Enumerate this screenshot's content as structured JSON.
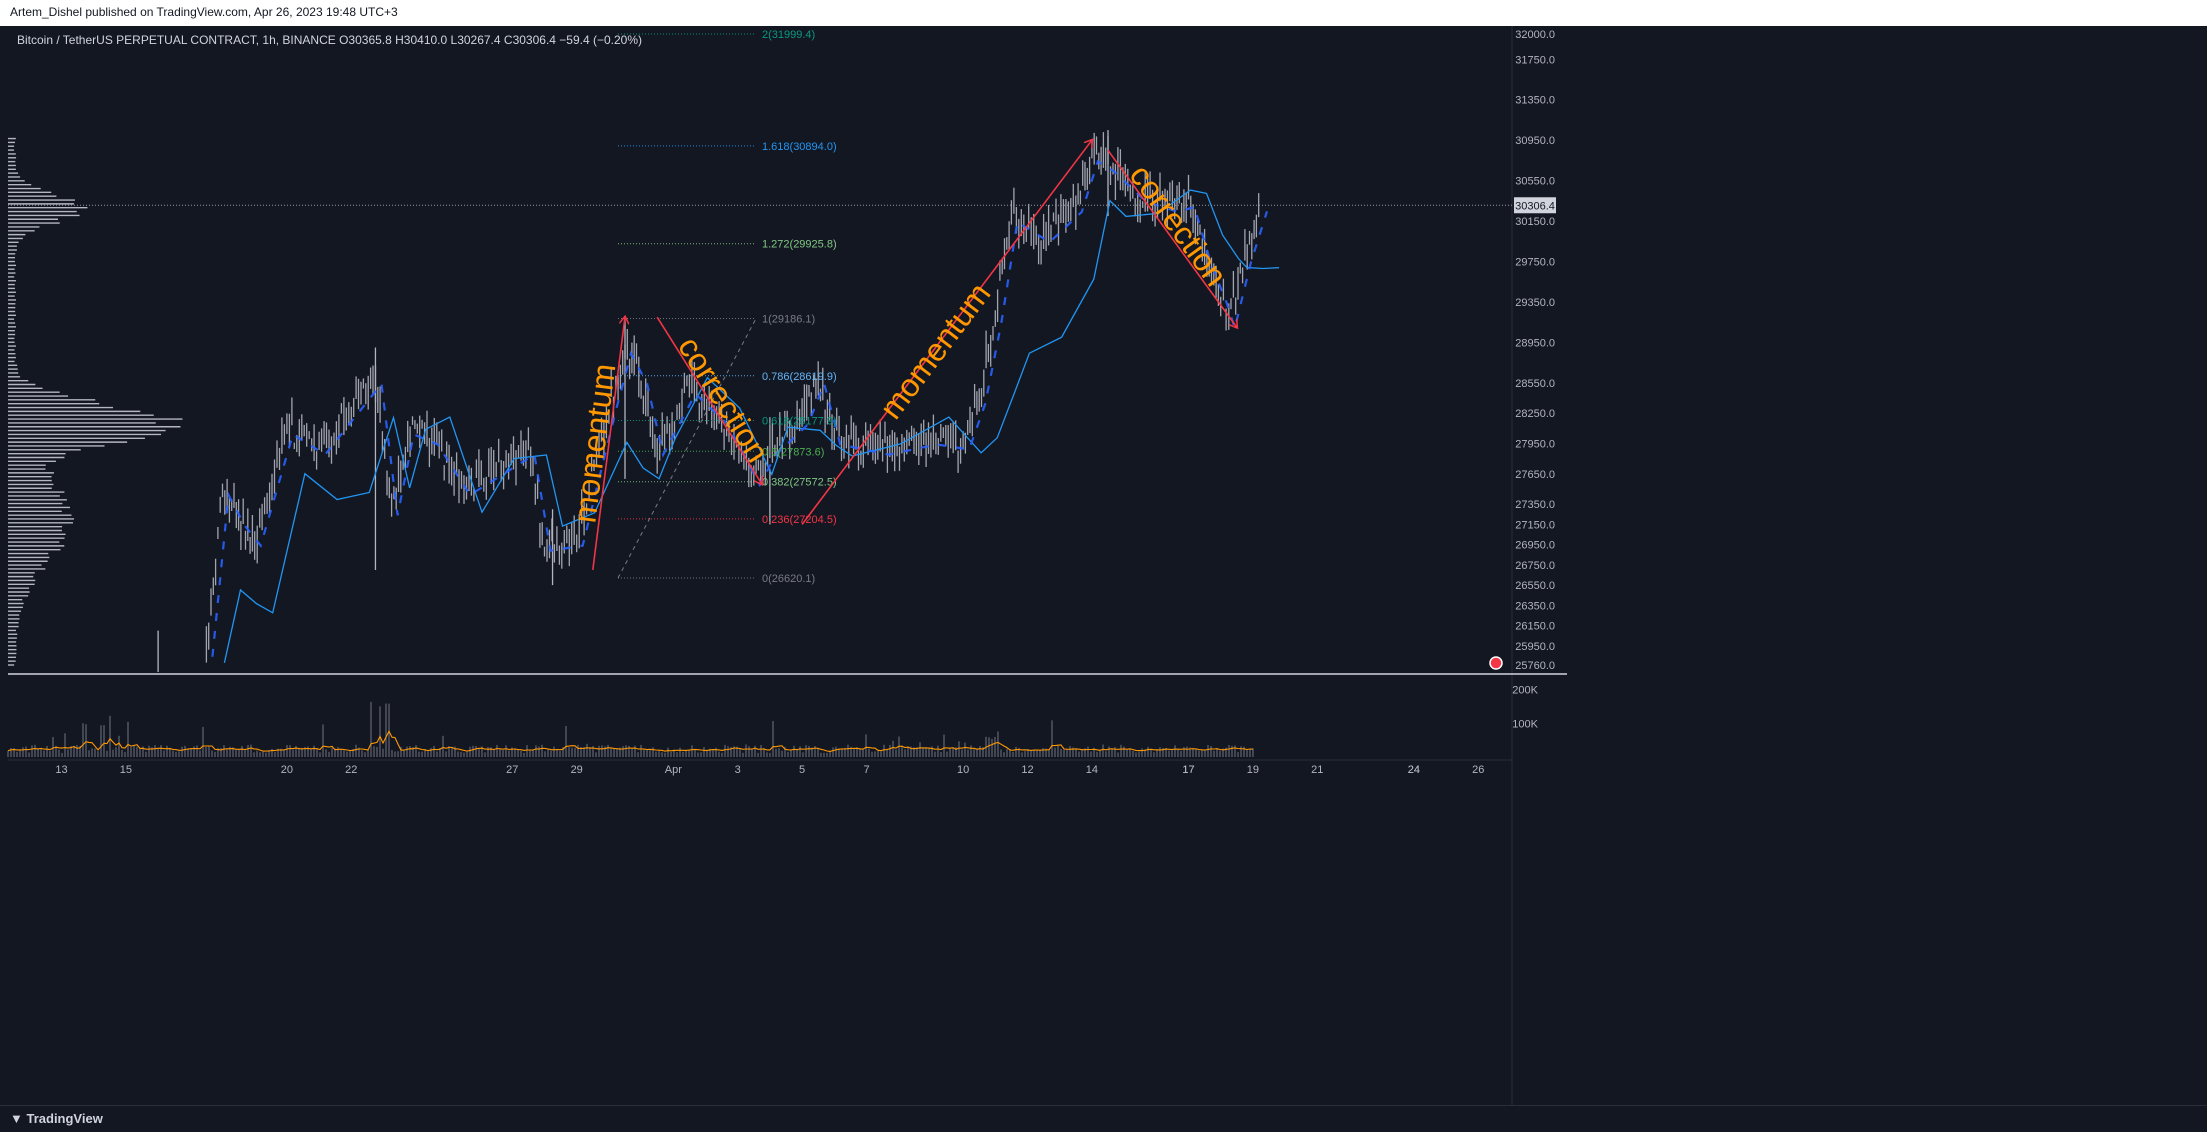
{
  "header": {
    "attribution": "Artem_Dishel published on TradingView.com, Apr 26, 2023 19:48 UTC+3"
  },
  "footer": {
    "brand": "TradingView"
  },
  "legend": {
    "text": "Bitcoin / TetherUS PERPETUAL CONTRACT, 1h, BINANCE  O30365.8  H30410.0  L30267.4  C30306.4  −59.4 (−0.20%)"
  },
  "colors": {
    "background": "#131722",
    "candle": "#b2b5be",
    "arrow": "#f23645",
    "label": "#ff9800",
    "ma": "#2196f3",
    "vwma": "#2962ff",
    "volume_ma": "#ff9800"
  },
  "chart_data": [
    {
      "type": "line",
      "title": "Bitcoin / TetherUS PERPETUAL CONTRACT, 1h, BINANCE",
      "ohlc": {
        "open": 30365.8,
        "high": 30410.0,
        "low": 30267.4,
        "close": 30306.4,
        "change": -59.4,
        "change_pct": "-0.20%"
      },
      "current_price_label": "30306.4",
      "y_ticks": [
        "32000.0",
        "31750.0",
        "31350.0",
        "30950.0",
        "30550.0",
        "30150.0",
        "29750.0",
        "29350.0",
        "28950.0",
        "28550.0",
        "28250.0",
        "27950.0",
        "27650.0",
        "27350.0",
        "27150.0",
        "26950.0",
        "26750.0",
        "26550.0",
        "26350.0",
        "26150.0",
        "25950.0",
        "25760.0"
      ],
      "x_ticks": [
        "13",
        "15",
        "17",
        "20",
        "22",
        "24",
        "27",
        "29",
        "Apr",
        "3",
        "5",
        "7",
        "10",
        "12",
        "14",
        "17",
        "19",
        "21",
        "24",
        "26"
      ],
      "ylim": [
        25720,
        32120
      ],
      "price_path": [
        {
          "t": "Mar 17 12:00",
          "p": 25900
        },
        {
          "t": "Mar 18 00:00",
          "p": 27500
        },
        {
          "t": "Mar 18 12:00",
          "p": 27200
        },
        {
          "t": "Mar 19 00:00",
          "p": 27000
        },
        {
          "t": "Mar 20 00:00",
          "p": 28100
        },
        {
          "t": "Mar 21 00:00",
          "p": 27900
        },
        {
          "t": "Mar 22 00:00",
          "p": 28300
        },
        {
          "t": "Mar 22 18:00",
          "p": 28600
        },
        {
          "t": "Mar 23 06:00",
          "p": 27300
        },
        {
          "t": "Mar 23 18:00",
          "p": 28100
        },
        {
          "t": "Mar 24 12:00",
          "p": 28000
        },
        {
          "t": "Mar 25 12:00",
          "p": 27500
        },
        {
          "t": "Mar 26 12:00",
          "p": 27700
        },
        {
          "t": "Mar 27 12:00",
          "p": 27900
        },
        {
          "t": "Mar 28 00:00",
          "p": 26950
        },
        {
          "t": "Mar 29 00:00",
          "p": 27000
        },
        {
          "t": "Mar 30 00:00",
          "p": 28300
        },
        {
          "t": "Mar 30 12:00",
          "p": 28900
        },
        {
          "t": "Mar 31 00:00",
          "p": 28600
        },
        {
          "t": "Mar 31 12:00",
          "p": 27900
        },
        {
          "t": "Apr 1 12:00",
          "p": 28500
        },
        {
          "t": "Apr 2 12:00",
          "p": 28200
        },
        {
          "t": "Apr 3 12:00",
          "p": 27600
        },
        {
          "t": "Apr 4 00:00",
          "p": 27900
        },
        {
          "t": "Apr 5 00:00",
          "p": 28200
        },
        {
          "t": "Apr 5 12:00",
          "p": 28600
        },
        {
          "t": "Apr 6 00:00",
          "p": 28000
        },
        {
          "t": "Apr 7 12:00",
          "p": 27900
        },
        {
          "t": "Apr 9 00:00",
          "p": 28000
        },
        {
          "t": "Apr 10 00:00",
          "p": 27950
        },
        {
          "t": "Apr 10 12:00",
          "p": 28400
        },
        {
          "t": "Apr 11 00:00",
          "p": 29200
        },
        {
          "t": "Apr 11 12:00",
          "p": 30200
        },
        {
          "t": "Apr 12 12:00",
          "p": 30000
        },
        {
          "t": "Apr 13 12:00",
          "p": 30300
        },
        {
          "t": "Apr 14 00:00",
          "p": 30800
        },
        {
          "t": "Apr 14 12:00",
          "p": 30700
        },
        {
          "t": "Apr 15 12:00",
          "p": 30400
        },
        {
          "t": "Apr 16 12:00",
          "p": 30300
        },
        {
          "t": "Apr 17 00:00",
          "p": 30350
        },
        {
          "t": "Apr 17 12:00",
          "p": 29800
        },
        {
          "t": "Apr 18 00:00",
          "p": 29400
        },
        {
          "t": "Apr 18 06:00",
          "p": 29150
        },
        {
          "t": "Apr 18 18:00",
          "p": 29800
        },
        {
          "t": "Apr 19 06:00",
          "p": 30306.4
        }
      ],
      "fibonacci": [
        {
          "label": "2(31999.4)",
          "level": 2,
          "price": 31999.4,
          "color": "#089981"
        },
        {
          "label": "1.618(30894.0)",
          "level": 1.618,
          "price": 30894.0,
          "color": "#2196f3"
        },
        {
          "label": "1.272(29925.8)",
          "level": 1.272,
          "price": 29925.8,
          "color": "#81c784"
        },
        {
          "label": "1(29186.1)",
          "level": 1,
          "price": 29186.1,
          "color": "#787b86"
        },
        {
          "label": "0.786(28619.9)",
          "level": 0.786,
          "price": 28619.9,
          "color": "#64b5f6"
        },
        {
          "label": "0.618(28177.9)",
          "level": 0.618,
          "price": 28177.9,
          "color": "#089981"
        },
        {
          "label": "0.5(27873.6)",
          "level": 0.5,
          "price": 27873.6,
          "color": "#4caf50"
        },
        {
          "label": "0.382(27572.5)",
          "level": 0.382,
          "price": 27572.5,
          "color": "#81c784"
        },
        {
          "label": "0.236(27204.5)",
          "level": 0.236,
          "price": 27204.5,
          "color": "#f23645"
        },
        {
          "label": "0(26620.1)",
          "level": 0,
          "price": 26620.1,
          "color": "#787b86"
        }
      ],
      "annotations": [
        {
          "text": "momentum",
          "color": "#ff9800",
          "from": {
            "t": "Mar 29 12:00",
            "p": 26700
          },
          "to": {
            "t": "Mar 30 12:00",
            "p": 29200
          }
        },
        {
          "text": "correction",
          "color": "#ff9800",
          "from": {
            "t": "Mar 31 12:00",
            "p": 29200
          },
          "to": {
            "t": "Apr 3 18:00",
            "p": 27550
          }
        },
        {
          "text": "momentum",
          "color": "#ff9800",
          "from": {
            "t": "Apr 5 00:00",
            "p": 27150
          },
          "to": {
            "t": "Apr 14 00:00",
            "p": 30950
          }
        },
        {
          "text": "correction",
          "color": "#ff9800",
          "from": {
            "t": "Apr 14 12:00",
            "p": 30850
          },
          "to": {
            "t": "Apr 18 12:00",
            "p": 29100
          }
        }
      ]
    },
    {
      "type": "bar",
      "title": "Volume",
      "y_ticks": [
        "200K",
        "100K"
      ],
      "ylim": [
        0,
        240000
      ]
    }
  ]
}
